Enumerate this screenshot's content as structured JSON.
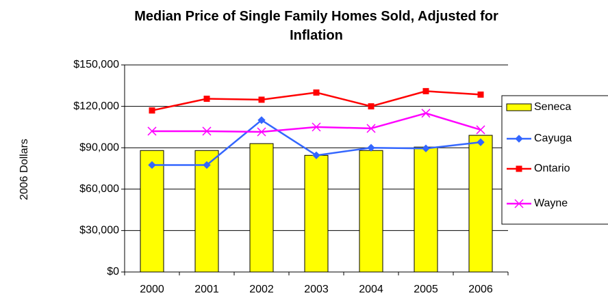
{
  "chart_data": {
    "type": "bar_line",
    "title": "Median Price of Single Family Homes Sold, Adjusted for Inflation",
    "y_label": "2006 Dollars",
    "categories": [
      "2000",
      "2001",
      "2002",
      "2003",
      "2004",
      "2005",
      "2006"
    ],
    "series": [
      {
        "name": "Seneca",
        "type": "bar",
        "color": "#ffff00",
        "values": [
          88000,
          88000,
          93000,
          84500,
          88000,
          90500,
          99000
        ]
      },
      {
        "name": "Cayuga",
        "type": "line",
        "marker": "diamond",
        "color": "#3366ff",
        "values": [
          77500,
          77500,
          110000,
          84500,
          90000,
          89500,
          94000
        ]
      },
      {
        "name": "Ontario",
        "type": "line",
        "marker": "square",
        "color": "#ff0000",
        "values": [
          117000,
          125500,
          124800,
          130000,
          120000,
          131000,
          128500
        ]
      },
      {
        "name": "Wayne",
        "type": "line",
        "marker": "x",
        "color": "#ff00ff",
        "values": [
          102000,
          102000,
          101500,
          105000,
          104000,
          115000,
          103000
        ]
      }
    ],
    "ylim": [
      0,
      150000
    ],
    "yticks": [
      {
        "value": 0,
        "label": "$0"
      },
      {
        "value": 30000,
        "label": "$30,000"
      },
      {
        "value": 60000,
        "label": "$60,000"
      },
      {
        "value": 90000,
        "label": "$90,000"
      },
      {
        "value": 120000,
        "label": "$120,000"
      },
      {
        "value": 150000,
        "label": "$150,000"
      }
    ],
    "grid": true,
    "legend": "right"
  }
}
